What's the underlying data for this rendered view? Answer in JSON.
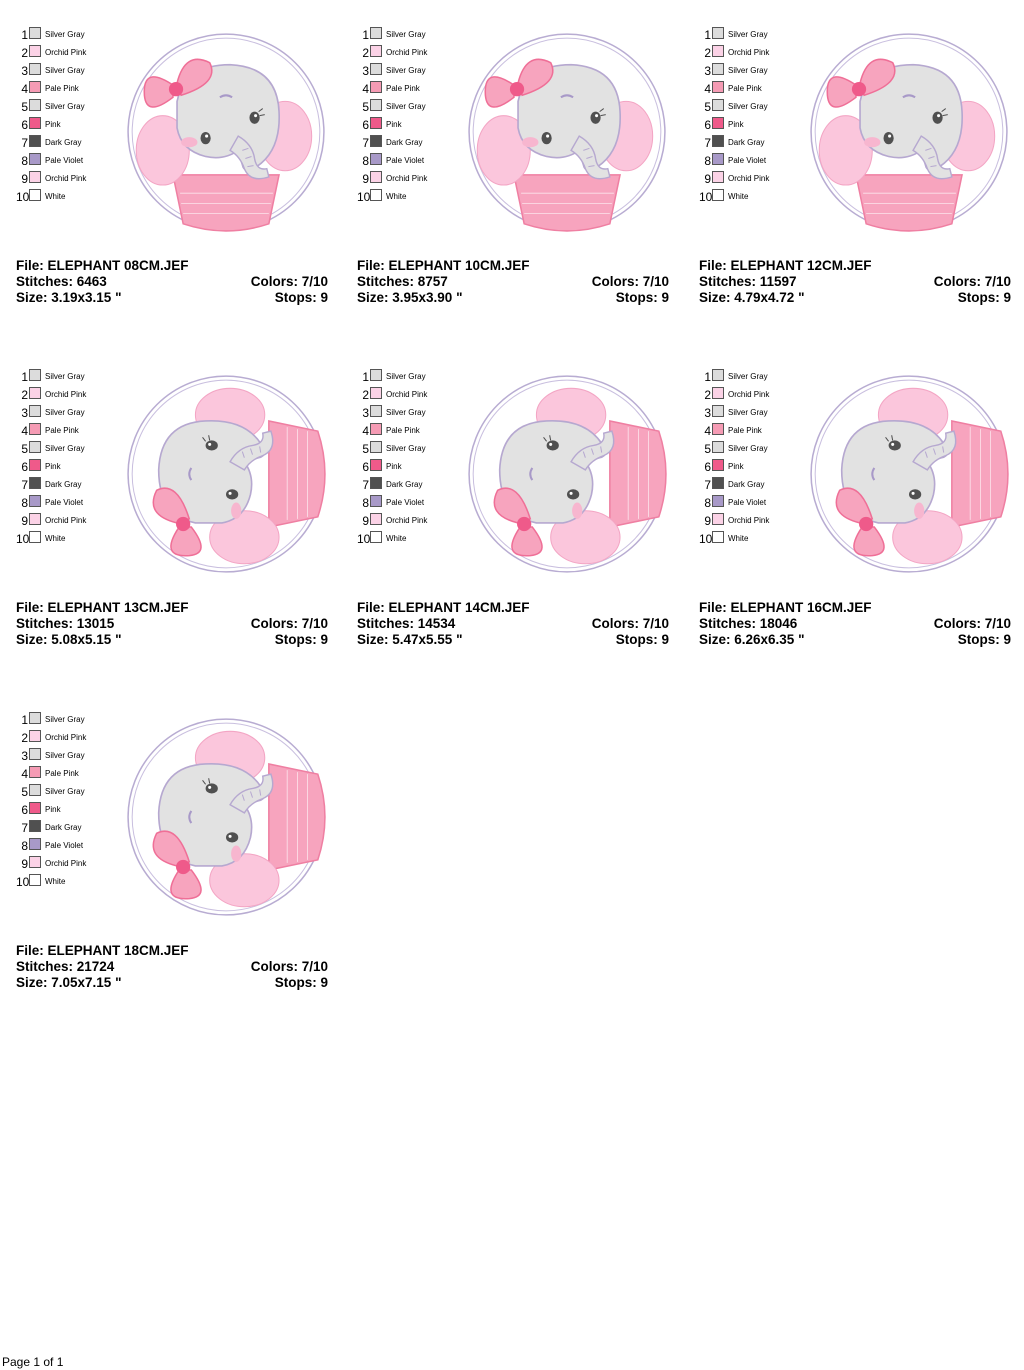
{
  "colors": {
    "Silver Gray": "#dcdcdc",
    "Orchid Pink": "#fbd2e6",
    "Pale Pink": "#f59bb4",
    "Pink": "#ef5a8a",
    "Dark Gray": "#505050",
    "Pale Violet": "#a899c8",
    "White": "#ffffff"
  },
  "legend": [
    {
      "num": "1",
      "name": "Silver Gray"
    },
    {
      "num": "2",
      "name": "Orchid Pink"
    },
    {
      "num": "3",
      "name": "Silver Gray"
    },
    {
      "num": "4",
      "name": "Pale Pink"
    },
    {
      "num": "5",
      "name": "Silver Gray"
    },
    {
      "num": "6",
      "name": "Pink"
    },
    {
      "num": "7",
      "name": "Dark Gray"
    },
    {
      "num": "8",
      "name": "Pale Violet"
    },
    {
      "num": "9",
      "name": "Orchid Pink"
    },
    {
      "num": "10",
      "name": "White"
    }
  ],
  "designs": [
    {
      "file": "File: ELEPHANT 08CM.JEF",
      "stitches": "Stitches: 6463",
      "colors": "Colors: 7/10",
      "size": "Size: 3.19x3.15 \"",
      "stops": "Stops: 9",
      "orientation": "upright"
    },
    {
      "file": "File: ELEPHANT 10CM.JEF",
      "stitches": "Stitches: 8757",
      "colors": "Colors: 7/10",
      "size": "Size: 3.95x3.90 \"",
      "stops": "Stops: 9",
      "orientation": "upright"
    },
    {
      "file": "File: ELEPHANT 12CM.JEF",
      "stitches": "Stitches: 11597",
      "colors": "Colors: 7/10",
      "size": "Size: 4.79x4.72 \"",
      "stops": "Stops: 9",
      "orientation": "upright"
    },
    {
      "file": "File: ELEPHANT 13CM.JEF",
      "stitches": "Stitches: 13015",
      "colors": "Colors: 7/10",
      "size": "Size: 5.08x5.15 \"",
      "stops": "Stops: 9",
      "orientation": "rotated"
    },
    {
      "file": "File: ELEPHANT 14CM.JEF",
      "stitches": "Stitches: 14534",
      "colors": "Colors: 7/10",
      "size": "Size: 5.47x5.55 \"",
      "stops": "Stops: 9",
      "orientation": "rotated"
    },
    {
      "file": "File: ELEPHANT 16CM.JEF",
      "stitches": "Stitches: 18046",
      "colors": "Colors: 7/10",
      "size": "Size: 6.26x6.35 \"",
      "stops": "Stops: 9",
      "orientation": "rotated"
    },
    {
      "file": "File: ELEPHANT 18CM.JEF",
      "stitches": "Stitches: 21724",
      "colors": "Colors: 7/10",
      "size": "Size: 7.05x7.15 \"",
      "stops": "Stops: 9",
      "orientation": "rotated"
    }
  ],
  "footer": "Page 1 of 1"
}
